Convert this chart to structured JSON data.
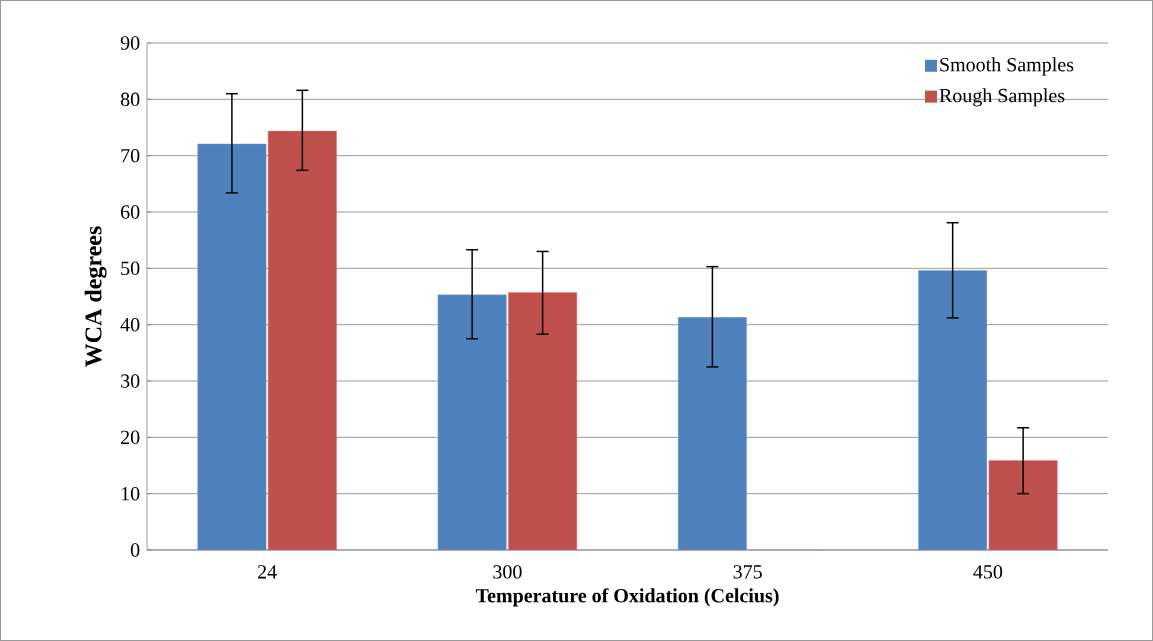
{
  "chart_data": {
    "type": "bar",
    "xlabel": "Temperature of Oxidation (Celcius)",
    "ylabel": "WCA degrees",
    "categories": [
      "24",
      "300",
      "375",
      "450"
    ],
    "series": [
      {
        "name": "Smooth Samples",
        "color": "#4f81bd",
        "values": [
          72.1,
          45.3,
          41.3,
          49.6
        ],
        "errors": [
          [
            63.4,
            81.0
          ],
          [
            37.5,
            53.3
          ],
          [
            32.5,
            50.3
          ],
          [
            41.2,
            58.1
          ]
        ]
      },
      {
        "name": "Rough Samples",
        "color": "#c0504d",
        "values": [
          74.4,
          45.7,
          0,
          15.9
        ],
        "errors": [
          [
            67.4,
            81.6
          ],
          [
            38.3,
            53.0
          ],
          null,
          [
            10.0,
            21.7
          ]
        ]
      }
    ],
    "ylim": [
      0,
      90
    ],
    "yticks": [
      0,
      10,
      20,
      30,
      40,
      50,
      60,
      70,
      80,
      90
    ],
    "grid": "y",
    "legend": "top right"
  }
}
